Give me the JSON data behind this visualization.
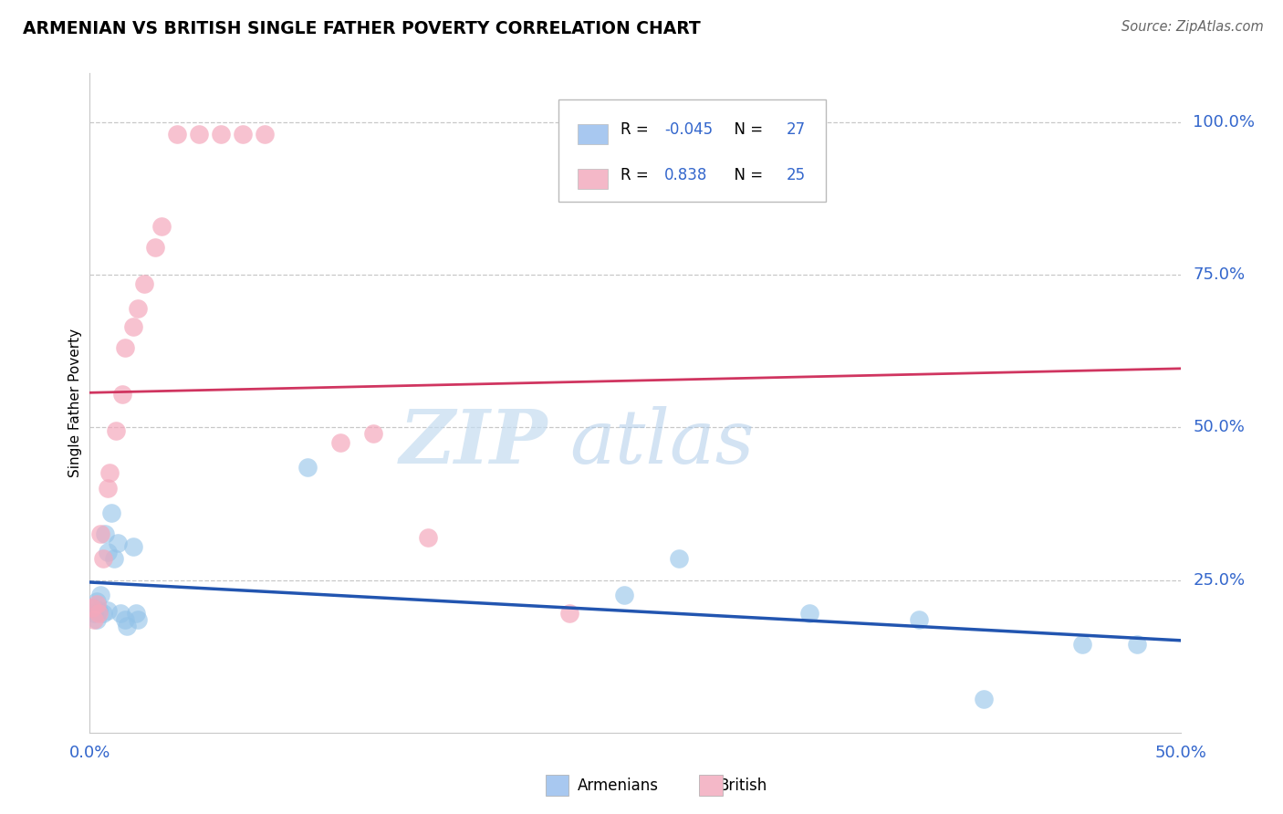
{
  "title": "ARMENIAN VS BRITISH SINGLE FATHER POVERTY CORRELATION CHART",
  "source": "Source: ZipAtlas.com",
  "ylabel": "Single Father Poverty",
  "xlim": [
    0.0,
    0.5
  ],
  "ylim": [
    0.0,
    1.08
  ],
  "armenian_R": -0.045,
  "armenian_N": 27,
  "british_R": 0.838,
  "british_N": 25,
  "armenian_color": "#92C2E8",
  "british_color": "#F4A8BC",
  "trendline_armenian_color": "#2255B0",
  "trendline_british_color": "#D03560",
  "legend_armenian_color": "#A8C8F0",
  "legend_british_color": "#F4B8C8",
  "ytick_positions": [
    1.0,
    0.75,
    0.5,
    0.25
  ],
  "ytick_labels": [
    "100.0%",
    "75.0%",
    "50.0%",
    "25.0%"
  ],
  "armenian_scatter": [
    [
      0.001,
      0.205
    ],
    [
      0.002,
      0.195
    ],
    [
      0.003,
      0.215
    ],
    [
      0.003,
      0.185
    ],
    [
      0.004,
      0.2
    ],
    [
      0.005,
      0.225
    ],
    [
      0.006,
      0.195
    ],
    [
      0.007,
      0.325
    ],
    [
      0.008,
      0.295
    ],
    [
      0.008,
      0.2
    ],
    [
      0.01,
      0.36
    ],
    [
      0.011,
      0.285
    ],
    [
      0.013,
      0.31
    ],
    [
      0.014,
      0.195
    ],
    [
      0.016,
      0.185
    ],
    [
      0.017,
      0.175
    ],
    [
      0.02,
      0.305
    ],
    [
      0.021,
      0.195
    ],
    [
      0.022,
      0.185
    ],
    [
      0.1,
      0.435
    ],
    [
      0.245,
      0.225
    ],
    [
      0.27,
      0.285
    ],
    [
      0.33,
      0.195
    ],
    [
      0.38,
      0.185
    ],
    [
      0.41,
      0.055
    ],
    [
      0.455,
      0.145
    ],
    [
      0.48,
      0.145
    ]
  ],
  "british_scatter": [
    [
      0.001,
      0.205
    ],
    [
      0.002,
      0.185
    ],
    [
      0.003,
      0.21
    ],
    [
      0.004,
      0.195
    ],
    [
      0.005,
      0.325
    ],
    [
      0.006,
      0.285
    ],
    [
      0.008,
      0.4
    ],
    [
      0.009,
      0.425
    ],
    [
      0.012,
      0.495
    ],
    [
      0.015,
      0.555
    ],
    [
      0.016,
      0.63
    ],
    [
      0.02,
      0.665
    ],
    [
      0.022,
      0.695
    ],
    [
      0.025,
      0.735
    ],
    [
      0.03,
      0.795
    ],
    [
      0.033,
      0.83
    ],
    [
      0.04,
      0.98
    ],
    [
      0.05,
      0.98
    ],
    [
      0.06,
      0.98
    ],
    [
      0.07,
      0.98
    ],
    [
      0.08,
      0.98
    ],
    [
      0.115,
      0.475
    ],
    [
      0.13,
      0.49
    ],
    [
      0.155,
      0.32
    ],
    [
      0.22,
      0.195
    ]
  ]
}
